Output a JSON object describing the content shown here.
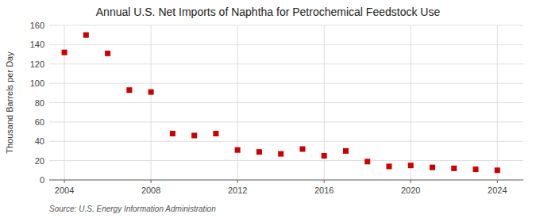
{
  "chart_data": {
    "type": "scatter",
    "title": "Annual U.S. Net Imports of Naphtha for Petrochemical Feedstock Use",
    "y_label": "Thousand Barrels per Day",
    "annotations": [
      "Source: U.S. Energy Information Administration"
    ],
    "x": [
      2004,
      2005,
      2006,
      2007,
      2008,
      2009,
      2010,
      2011,
      2012,
      2013,
      2014,
      2015,
      2016,
      2017,
      2018,
      2019,
      2020,
      2021,
      2022,
      2023,
      2024
    ],
    "values": [
      132,
      150,
      131,
      93,
      91,
      48,
      46,
      48,
      31,
      29,
      27,
      32,
      25,
      30,
      19,
      14,
      15,
      13,
      12,
      11,
      10
    ],
    "color": "#cc0000",
    "marker": "square",
    "xlim": [
      2003.3,
      2025.2
    ],
    "xticks": [
      2004,
      2008,
      2012,
      2016,
      2020,
      2024
    ],
    "ylim": [
      0,
      160
    ],
    "yticks": [
      0,
      20,
      40,
      60,
      80,
      100,
      120,
      140,
      160
    ],
    "grid": true
  }
}
